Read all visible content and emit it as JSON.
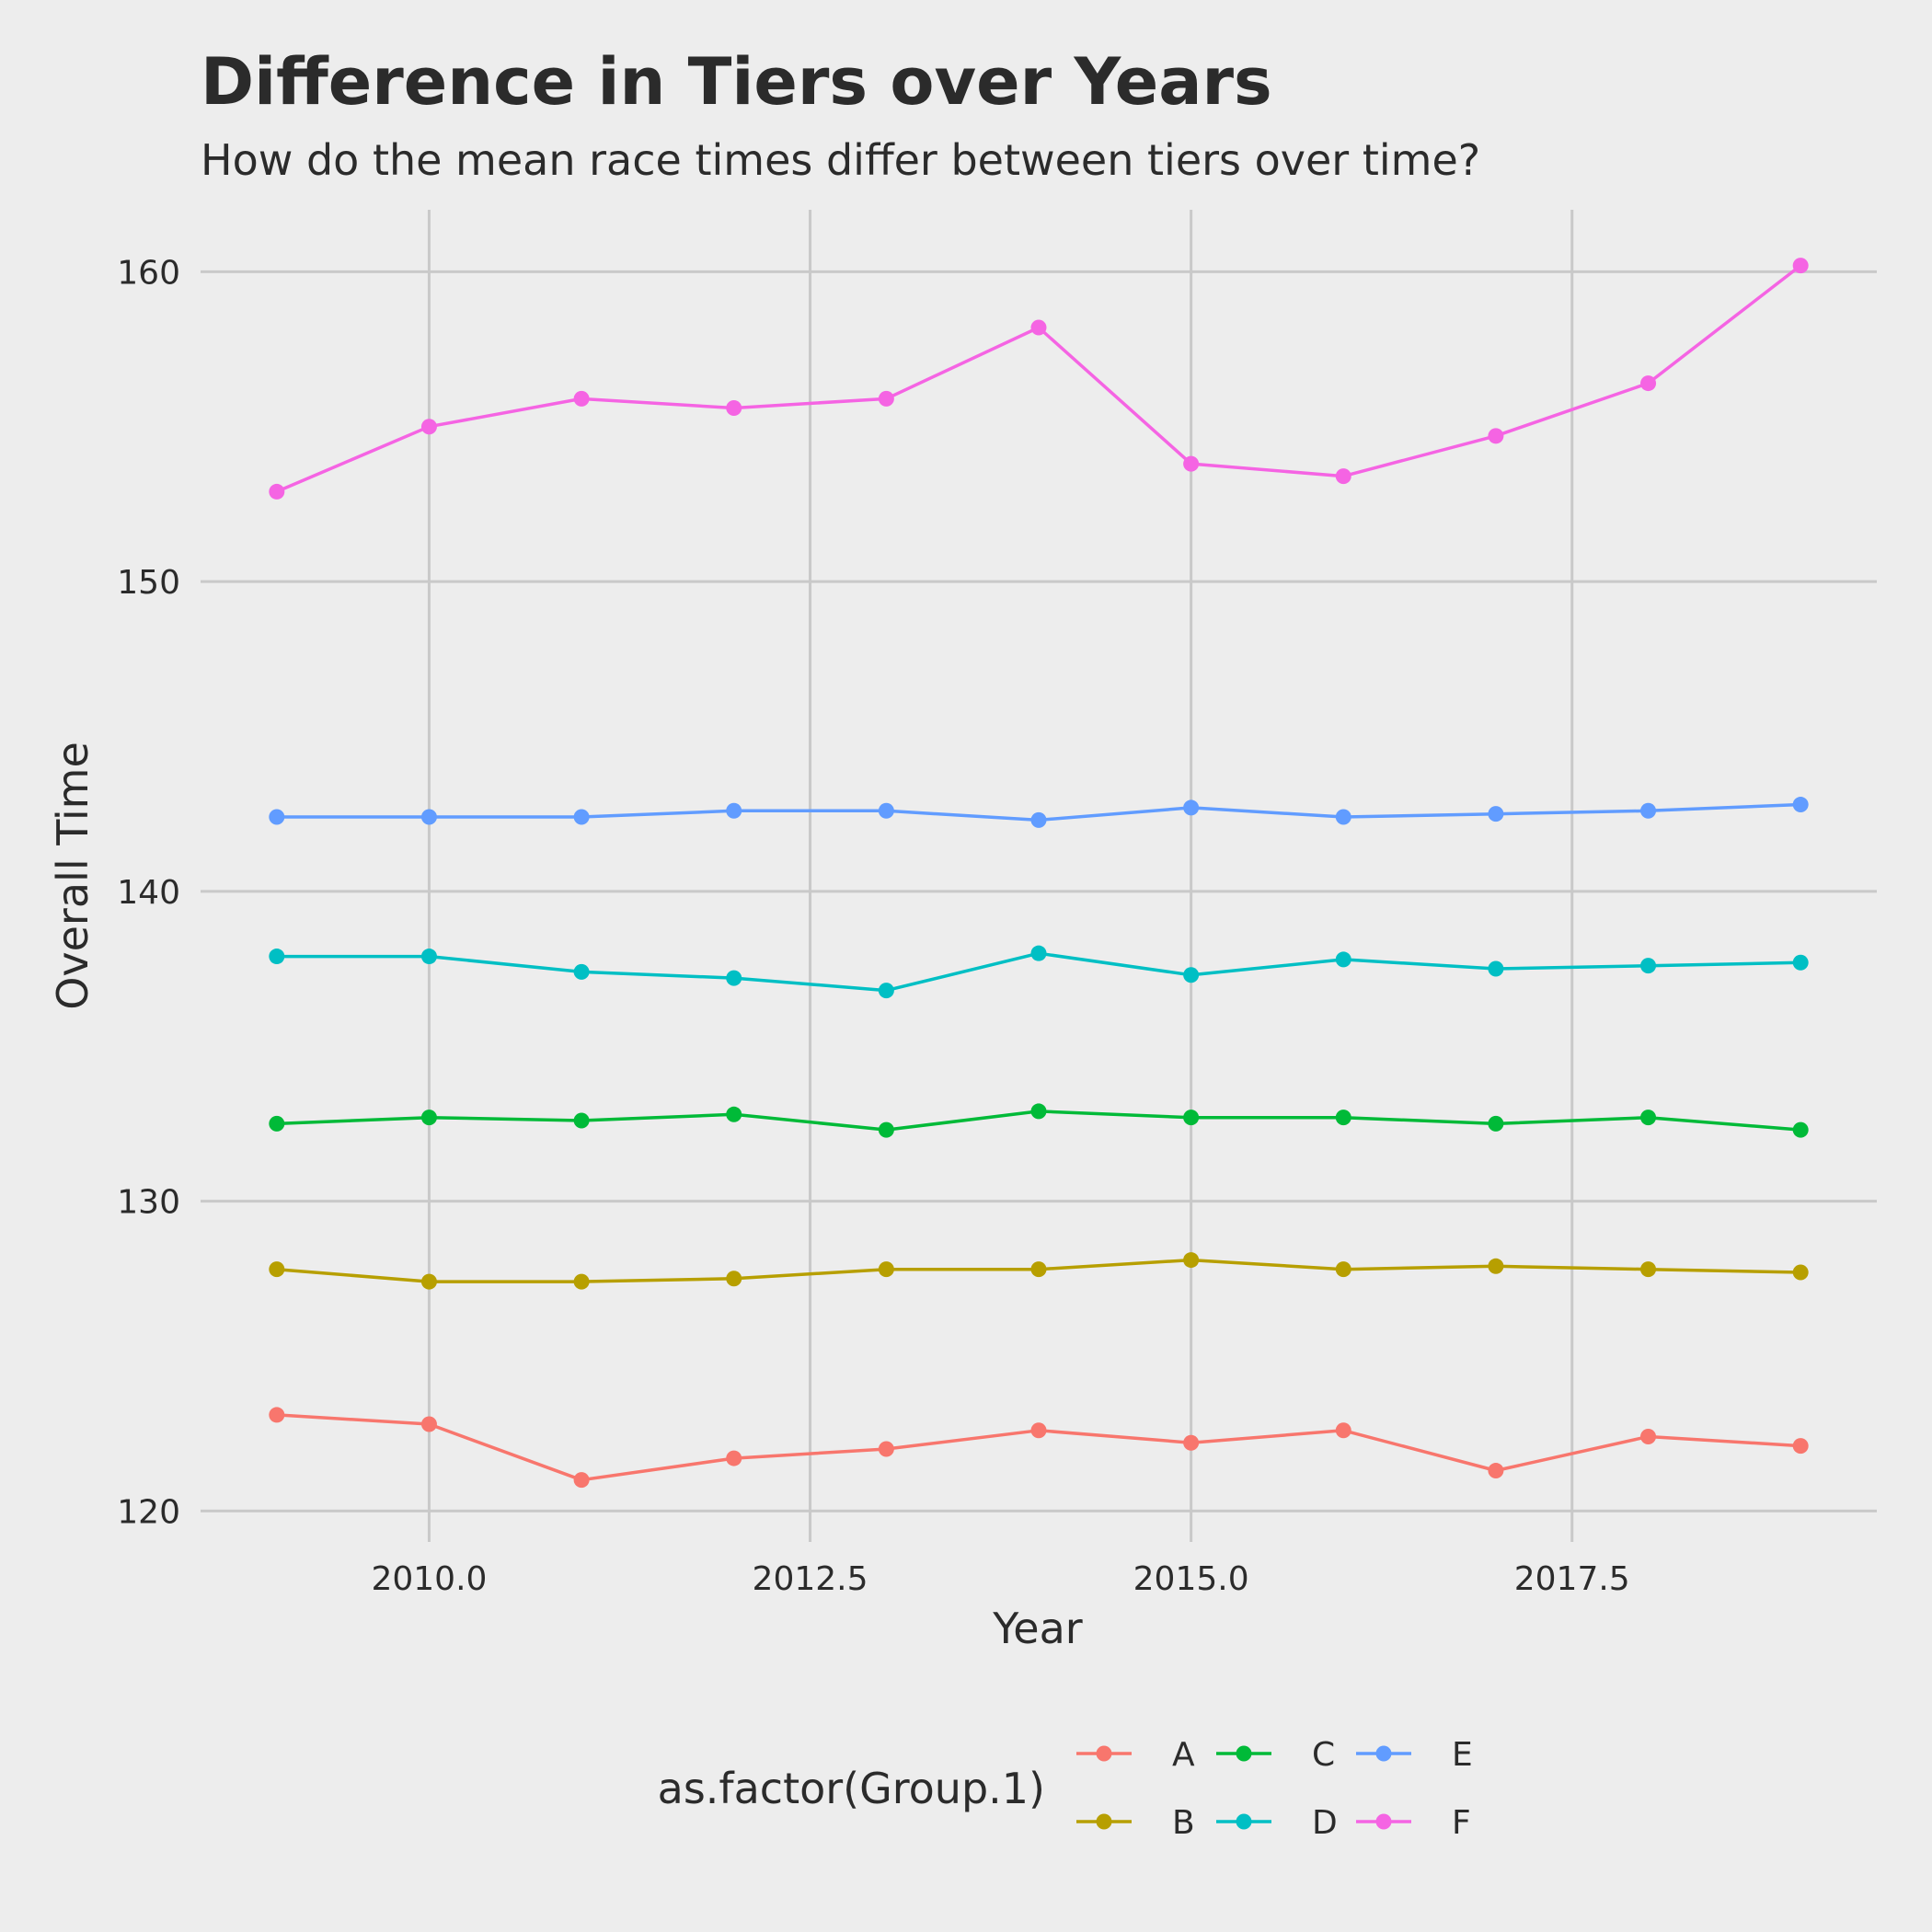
{
  "chart_data": {
    "type": "line",
    "title": "Difference in Tiers over Years",
    "subtitle": "How do the mean race times differ between tiers over time?",
    "xlabel": "Year",
    "ylabel": "Overall Time",
    "xlim": [
      2008.5,
      2019.5
    ],
    "ylim": [
      119,
      162
    ],
    "x_ticks": [
      2010.0,
      2012.5,
      2015.0,
      2017.5
    ],
    "x_tick_labels": [
      "2010.0",
      "2012.5",
      "2015.0",
      "2017.5"
    ],
    "y_ticks": [
      120,
      130,
      140,
      150,
      160
    ],
    "y_tick_labels": [
      "120",
      "130",
      "140",
      "150",
      "160"
    ],
    "grid": true,
    "legend": {
      "title": "as.factor(Group.1)",
      "position": "bottom"
    },
    "x": [
      2009,
      2010,
      2011,
      2012,
      2013,
      2014,
      2015,
      2016,
      2017,
      2018,
      2019
    ],
    "series": [
      {
        "name": "A",
        "color": "#f8766d",
        "values": [
          123.1,
          122.8,
          121.0,
          121.7,
          122.0,
          122.6,
          122.2,
          122.6,
          121.3,
          122.4,
          122.1
        ]
      },
      {
        "name": "B",
        "color": "#b79f00",
        "values": [
          127.8,
          127.4,
          127.4,
          127.5,
          127.8,
          127.8,
          128.1,
          127.8,
          127.9,
          127.8,
          127.7
        ]
      },
      {
        "name": "C",
        "color": "#00ba38",
        "values": [
          132.5,
          132.7,
          132.6,
          132.8,
          132.3,
          132.9,
          132.7,
          132.7,
          132.5,
          132.7,
          132.3
        ]
      },
      {
        "name": "D",
        "color": "#00bfc4",
        "values": [
          137.9,
          137.9,
          137.4,
          137.2,
          136.8,
          138.0,
          137.3,
          137.8,
          137.5,
          137.6,
          137.7
        ]
      },
      {
        "name": "E",
        "color": "#619cff",
        "values": [
          142.4,
          142.4,
          142.4,
          142.6,
          142.6,
          142.3,
          142.7,
          142.4,
          142.5,
          142.6,
          142.8
        ]
      },
      {
        "name": "F",
        "color": "#f564e3",
        "values": [
          152.9,
          155.0,
          155.9,
          155.6,
          155.9,
          158.2,
          153.8,
          153.4,
          154.7,
          156.4,
          160.2
        ]
      }
    ]
  }
}
